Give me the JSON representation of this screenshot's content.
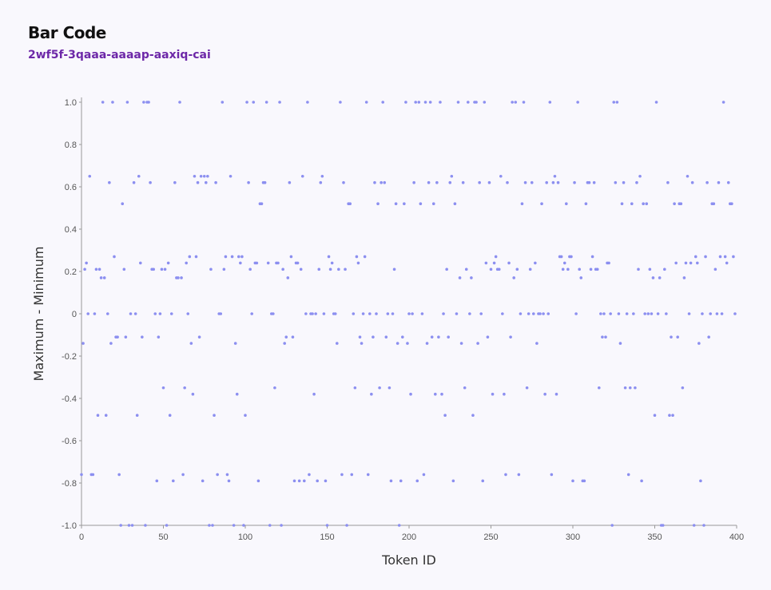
{
  "chart_data": {
    "type": "scatter",
    "title": "Bar Code",
    "subtitle": "2wf5f-3qaaa-aaaap-aaxiq-cai",
    "x_label": "Token ID",
    "y_label": "Maximum - Minimum",
    "color": "#8c8ff0",
    "grid": false,
    "xlim": [
      0,
      400
    ],
    "xticks": [
      0,
      50,
      100,
      150,
      200,
      250,
      300,
      350,
      400
    ],
    "ylim": [
      -1,
      1
    ],
    "yticks": [
      {
        "value": -1,
        "label": "-1.0"
      },
      -0.8,
      -0.6,
      -0.4,
      -0.2,
      0,
      0.2,
      0.4,
      0.6,
      0.8,
      {
        "value": 1,
        "label": "1.0"
      }
    ],
    "x": [
      0,
      1,
      2,
      3,
      4,
      5,
      6,
      7,
      8,
      9,
      10,
      11,
      12,
      13,
      14,
      15,
      16,
      17,
      18,
      19,
      20,
      21,
      22,
      23,
      24,
      25,
      26,
      27,
      28,
      29,
      30,
      31,
      32,
      33,
      34,
      35,
      36,
      37,
      38,
      39,
      40,
      41,
      42,
      43,
      44,
      45,
      46,
      47,
      48,
      49,
      50,
      51,
      52,
      53,
      54,
      55,
      56,
      57,
      58,
      59,
      60,
      61,
      62,
      63,
      64,
      65,
      66,
      67,
      68,
      69,
      70,
      71,
      72,
      73,
      74,
      75,
      76,
      77,
      78,
      79,
      80,
      81,
      82,
      83,
      84,
      85,
      86,
      87,
      88,
      89,
      90,
      91,
      92,
      93,
      94,
      95,
      96,
      97,
      98,
      99,
      100,
      101,
      102,
      103,
      104,
      105,
      106,
      107,
      108,
      109,
      110,
      111,
      112,
      113,
      114,
      115,
      116,
      117,
      118,
      119,
      120,
      121,
      122,
      123,
      124,
      125,
      126,
      127,
      128,
      129,
      130,
      131,
      132,
      133,
      134,
      135,
      136,
      137,
      138,
      139,
      140,
      141,
      142,
      143,
      144,
      145,
      146,
      147,
      148,
      149,
      150,
      151,
      152,
      153,
      154,
      155,
      156,
      157,
      158,
      159,
      160,
      161,
      162,
      163,
      164,
      165,
      166,
      167,
      168,
      169,
      170,
      171,
      172,
      173,
      174,
      175,
      176,
      177,
      178,
      179,
      180,
      181,
      182,
      183,
      184,
      185,
      186,
      187,
      188,
      189,
      190,
      191,
      192,
      193,
      194,
      195,
      196,
      197,
      198,
      199,
      200,
      201,
      202,
      203,
      204,
      205,
      206,
      207,
      208,
      209,
      210,
      211,
      212,
      213,
      214,
      215,
      216,
      217,
      218,
      219,
      220,
      221,
      222,
      223,
      224,
      225,
      226,
      227,
      228,
      229,
      230,
      231,
      232,
      233,
      234,
      235,
      236,
      237,
      238,
      239,
      240,
      241,
      242,
      243,
      244,
      245,
      246,
      247,
      248,
      249,
      250,
      251,
      252,
      253,
      254,
      255,
      256,
      257,
      258,
      259,
      260,
      261,
      262,
      263,
      264,
      265,
      266,
      267,
      268,
      269,
      270,
      271,
      272,
      273,
      274,
      275,
      276,
      277,
      278,
      279,
      280,
      281,
      282,
      283,
      284,
      285,
      286,
      287,
      288,
      289,
      290,
      291,
      292,
      293,
      294,
      295,
      296,
      297,
      298,
      299,
      300,
      301,
      302,
      303,
      304,
      305,
      306,
      307,
      308,
      309,
      310,
      311,
      312,
      313,
      314,
      315,
      316,
      317,
      318,
      319,
      320,
      321,
      322,
      323,
      324,
      325,
      326,
      327,
      328,
      329,
      330,
      331,
      332,
      333,
      334,
      335,
      336,
      337,
      338,
      339,
      340,
      341,
      342,
      343,
      344,
      345,
      346,
      347,
      348,
      349,
      350,
      351,
      352,
      353,
      354,
      355,
      356,
      357,
      358,
      359,
      360,
      361,
      362,
      363,
      364,
      365,
      366,
      367,
      368,
      369,
      370,
      371,
      372,
      373,
      374,
      375,
      376,
      377,
      378,
      379,
      380,
      381,
      382,
      383,
      384,
      385,
      386,
      387,
      388,
      389,
      390,
      391,
      392,
      393,
      394,
      395,
      396,
      397,
      398,
      399
    ],
    "values": [
      -0.76,
      -0.14,
      0.21,
      0.24,
      0,
      0.65,
      -0.76,
      -0.76,
      0,
      0.21,
      -0.48,
      0.21,
      0.17,
      1,
      0.17,
      -0.48,
      0,
      0.62,
      -0.14,
      1,
      0.27,
      -0.11,
      -0.11,
      -0.76,
      -1,
      0.52,
      0.21,
      -0.11,
      1,
      -1,
      0,
      -1,
      0.62,
      0,
      -0.48,
      0.65,
      0.24,
      -0.11,
      1,
      -1,
      1,
      1,
      0.62,
      0.21,
      0.21,
      0,
      -0.79,
      -0.11,
      0,
      0.21,
      -0.35,
      0.21,
      -1,
      0.24,
      -0.48,
      0,
      -0.79,
      0.62,
      0.17,
      0.17,
      1,
      0.17,
      -0.76,
      -0.35,
      0.24,
      0,
      0.27,
      -0.14,
      -0.38,
      0.65,
      0.27,
      0.62,
      -0.11,
      0.65,
      -0.79,
      0.65,
      0.62,
      0.65,
      -1,
      0.21,
      -1,
      -0.48,
      0.62,
      -0.76,
      0,
      0,
      1,
      0.21,
      0.27,
      -0.76,
      -0.79,
      0.65,
      0.27,
      -1,
      -0.14,
      -0.38,
      0.27,
      0.24,
      0.27,
      -1,
      -0.48,
      1,
      0.62,
      0.21,
      0,
      1,
      0.24,
      0.24,
      -0.79,
      0.52,
      0.52,
      0.62,
      0.62,
      1,
      0.24,
      -1,
      0,
      0,
      -0.35,
      0.24,
      0.24,
      1,
      -1,
      0.21,
      -0.14,
      -0.11,
      0.17,
      0.62,
      0.27,
      -0.11,
      -0.79,
      0.24,
      0.24,
      -0.79,
      0.21,
      0.65,
      -0.79,
      0,
      1,
      -0.76,
      0,
      0,
      -0.38,
      0,
      -0.79,
      0.21,
      0.62,
      0.65,
      0,
      -0.79,
      -1,
      0.27,
      0.21,
      0.24,
      0,
      0,
      -0.14,
      0.21,
      1,
      -0.76,
      0.62,
      0.21,
      -1,
      0.52,
      0.52,
      -0.76,
      0,
      -0.35,
      0.27,
      0.24,
      -0.11,
      -0.14,
      0,
      0.27,
      1,
      -0.76,
      0,
      -0.38,
      -0.11,
      0.62,
      0,
      0.52,
      -0.35,
      0.62,
      1,
      0.62,
      -0.11,
      0,
      -0.35,
      -0.79,
      0,
      0.21,
      0.52,
      -0.14,
      -1,
      -0.79,
      -0.11,
      0.52,
      1,
      -0.14,
      0,
      -0.38,
      0,
      0.62,
      1,
      -0.79,
      1,
      0.52,
      0,
      -0.76,
      1,
      -0.14,
      0.62,
      1,
      -0.11,
      0.52,
      -0.38,
      0.62,
      -0.11,
      1,
      -0.38,
      0,
      -0.48,
      0.21,
      -0.11,
      0.62,
      0.65,
      -0.79,
      0.52,
      0,
      1,
      0.17,
      -0.14,
      0.62,
      -0.35,
      0.21,
      1,
      0,
      0.17,
      -0.48,
      1,
      1,
      -0.14,
      0.62,
      0,
      -0.79,
      1,
      0.24,
      -0.11,
      0.62,
      0.21,
      -0.38,
      0.24,
      0.27,
      0.21,
      0.21,
      0.65,
      0,
      -0.38,
      -0.76,
      0.62,
      0.24,
      -0.11,
      1,
      0.17,
      1,
      0.21,
      -0.76,
      0,
      0.52,
      1,
      0.62,
      -0.35,
      0,
      0.21,
      0.62,
      0,
      0.24,
      -0.14,
      0,
      0,
      0.52,
      0,
      -0.38,
      0.62,
      0,
      1,
      -0.76,
      0.62,
      0.65,
      -0.38,
      0.62,
      0.27,
      0.27,
      0.21,
      0.24,
      0.52,
      0.21,
      0.27,
      0.27,
      -0.79,
      0.62,
      0,
      1,
      0.21,
      0.17,
      -0.79,
      -0.79,
      0.52,
      0.62,
      0.62,
      0.21,
      0.27,
      0.62,
      0.21,
      0.21,
      -0.35,
      0,
      -0.11,
      0,
      -0.11,
      0.24,
      0.24,
      0,
      -1,
      1,
      0.62,
      1,
      0,
      -0.14,
      0.52,
      0.62,
      -0.35,
      0,
      -0.76,
      -0.35,
      0.52,
      0,
      -0.35,
      0.62,
      0.21,
      0.65,
      -0.79,
      0.52,
      0,
      0.52,
      0,
      0.21,
      0,
      0.17,
      -0.48,
      1,
      0,
      0.17,
      -1,
      -1,
      0.21,
      0,
      0.62,
      -0.48,
      -0.11,
      -0.48,
      0.52,
      0.24,
      -0.11,
      0.52,
      0.52,
      -0.35,
      0.17,
      0.24,
      0.65,
      0,
      0.24,
      0.62,
      -1,
      0.27,
      0.24,
      -0.14,
      -0.79,
      0,
      -1,
      0.27,
      0.62,
      -0.11,
      0,
      0.52,
      0.52,
      0.21,
      0,
      0.62,
      0.27,
      0,
      1,
      0.27,
      0.24,
      0.62,
      0.52,
      0.52,
      0.27,
      0
    ]
  }
}
